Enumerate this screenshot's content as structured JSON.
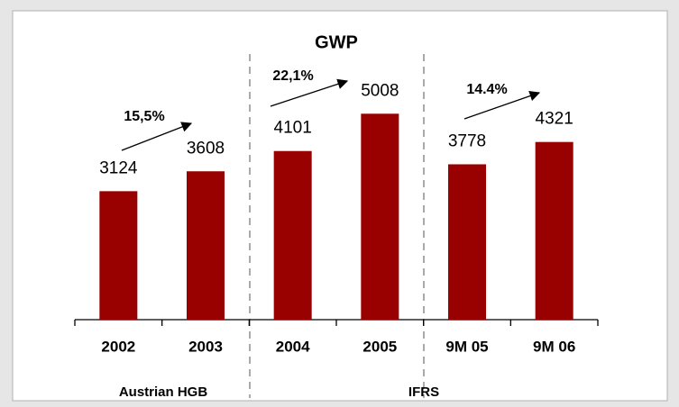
{
  "chart_data": {
    "type": "bar",
    "title": "GWP",
    "categories": [
      "2002",
      "2003",
      "2004",
      "2005",
      "9M 05",
      "9M 06"
    ],
    "values": [
      3124,
      3608,
      4101,
      5008,
      3778,
      4321
    ],
    "color": "#990000",
    "ylim": [
      0,
      6000
    ],
    "groups": [
      "Austrian HGB",
      "IFRS"
    ],
    "annotations": [
      "15,5%",
      "22,1%",
      "14.4%"
    ]
  }
}
